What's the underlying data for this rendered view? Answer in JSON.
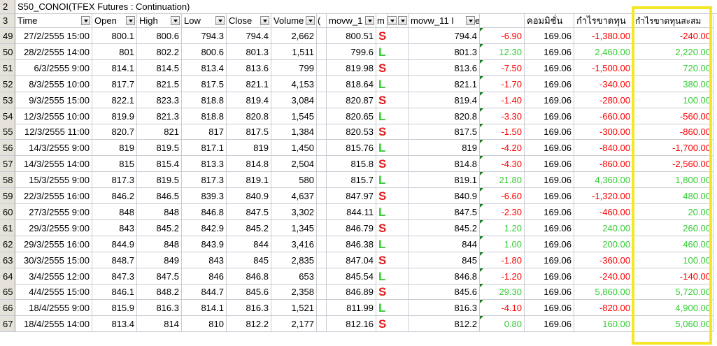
{
  "row2": {
    "num": "2",
    "title": "S50_CONOI(TFEX Futures : Continuation)"
  },
  "header": {
    "num": "3",
    "cols": [
      "Time",
      "Open",
      "High",
      "Low",
      "Close",
      "Volume",
      "(",
      "movw_1",
      "m",
      "",
      "movw_11 I",
      "e",
      "",
      "คอมมิชั่น",
      "กำไรขาดทุน",
      "กำไรขาดทุนสะสม"
    ]
  },
  "colors": {
    "positive": "#33cc33",
    "negative": "#ff0000",
    "highlight": "#f5e626",
    "rowheader": "#e4e2da"
  },
  "rows": [
    {
      "n": "49",
      "time": "27/2/2555 15:00",
      "open": "800.1",
      "high": "800.6",
      "low": "794.3",
      "close": "794.4",
      "vol": "2,662",
      "m1": "800.51",
      "sig": "S",
      "m11": "794.4",
      "pnl": "-6.90",
      "comm": "169.06",
      "pl": "-1,380.00",
      "cum": "-240.00"
    },
    {
      "n": "50",
      "time": "28/2/2555 14:00",
      "open": "801",
      "high": "802.2",
      "low": "800.6",
      "close": "801.3",
      "vol": "1,511",
      "m1": "799.6",
      "sig": "L",
      "m11": "801.3",
      "pnl": "12.30",
      "comm": "169.06",
      "pl": "2,460.00",
      "cum": "2,220.00"
    },
    {
      "n": "51",
      "time": "6/3/2555 9:00",
      "open": "814.1",
      "high": "814.5",
      "low": "813.4",
      "close": "813.6",
      "vol": "799",
      "m1": "819.98",
      "sig": "S",
      "m11": "813.6",
      "pnl": "-7.50",
      "comm": "169.06",
      "pl": "-1,500.00",
      "cum": "720.00"
    },
    {
      "n": "52",
      "time": "8/3/2555 10:00",
      "open": "817.7",
      "high": "821.5",
      "low": "817.5",
      "close": "821.1",
      "vol": "4,153",
      "m1": "818.64",
      "sig": "L",
      "m11": "821.1",
      "pnl": "-1.70",
      "comm": "169.06",
      "pl": "-340.00",
      "cum": "380.00"
    },
    {
      "n": "53",
      "time": "9/3/2555 15:00",
      "open": "822.1",
      "high": "823.3",
      "low": "818.8",
      "close": "819.4",
      "vol": "3,084",
      "m1": "820.87",
      "sig": "S",
      "m11": "819.4",
      "pnl": "-1.40",
      "comm": "169.06",
      "pl": "-280.00",
      "cum": "100.00"
    },
    {
      "n": "54",
      "time": "12/3/2555 10:00",
      "open": "819.9",
      "high": "821.3",
      "low": "818.8",
      "close": "820.8",
      "vol": "1,545",
      "m1": "820.65",
      "sig": "L",
      "m11": "820.8",
      "pnl": "-3.30",
      "comm": "169.06",
      "pl": "-660.00",
      "cum": "-560.00"
    },
    {
      "n": "55",
      "time": "12/3/2555 11:00",
      "open": "820.7",
      "high": "821",
      "low": "817",
      "close": "817.5",
      "vol": "1,384",
      "m1": "820.53",
      "sig": "S",
      "m11": "817.5",
      "pnl": "-1.50",
      "comm": "169.06",
      "pl": "-300.00",
      "cum": "-860.00"
    },
    {
      "n": "56",
      "time": "14/3/2555 9:00",
      "open": "819",
      "high": "819.5",
      "low": "817.1",
      "close": "819",
      "vol": "1,450",
      "m1": "815.76",
      "sig": "L",
      "m11": "819",
      "pnl": "-4.20",
      "comm": "169.06",
      "pl": "-840.00",
      "cum": "-1,700.00"
    },
    {
      "n": "57",
      "time": "14/3/2555 14:00",
      "open": "815",
      "high": "815.4",
      "low": "813.3",
      "close": "814.8",
      "vol": "2,504",
      "m1": "815.8",
      "sig": "S",
      "m11": "814.8",
      "pnl": "-4.30",
      "comm": "169.06",
      "pl": "-860.00",
      "cum": "-2,560.00"
    },
    {
      "n": "58",
      "time": "15/3/2555 9:00",
      "open": "817.3",
      "high": "819.5",
      "low": "817.3",
      "close": "819.1",
      "vol": "580",
      "m1": "815.7",
      "sig": "L",
      "m11": "819.1",
      "pnl": "21.80",
      "comm": "169.06",
      "pl": "4,360.00",
      "cum": "1,800.00"
    },
    {
      "n": "59",
      "time": "22/3/2555 16:00",
      "open": "846.2",
      "high": "846.5",
      "low": "839.3",
      "close": "840.9",
      "vol": "4,637",
      "m1": "847.97",
      "sig": "S",
      "m11": "840.9",
      "pnl": "-6.60",
      "comm": "169.06",
      "pl": "-1,320.00",
      "cum": "480.00"
    },
    {
      "n": "60",
      "time": "27/3/2555 9:00",
      "open": "848",
      "high": "848",
      "low": "846.8",
      "close": "847.5",
      "vol": "3,302",
      "m1": "844.11",
      "sig": "L",
      "m11": "847.5",
      "pnl": "-2.30",
      "comm": "169.06",
      "pl": "-460.00",
      "cum": "20.00"
    },
    {
      "n": "61",
      "time": "29/3/2555 9:00",
      "open": "843",
      "high": "845.2",
      "low": "842.9",
      "close": "845.2",
      "vol": "1,345",
      "m1": "846.79",
      "sig": "S",
      "m11": "845.2",
      "pnl": "1.20",
      "comm": "169.06",
      "pl": "240.00",
      "cum": "260.00"
    },
    {
      "n": "62",
      "time": "29/3/2555 16:00",
      "open": "844.9",
      "high": "848",
      "low": "843.9",
      "close": "844",
      "vol": "3,416",
      "m1": "846.38",
      "sig": "L",
      "m11": "844",
      "pnl": "1.00",
      "comm": "169.06",
      "pl": "200.00",
      "cum": "460.00"
    },
    {
      "n": "63",
      "time": "30/3/2555 15:00",
      "open": "848.7",
      "high": "849",
      "low": "843",
      "close": "845",
      "vol": "2,835",
      "m1": "847.04",
      "sig": "S",
      "m11": "845",
      "pnl": "-1.80",
      "comm": "169.06",
      "pl": "-360.00",
      "cum": "100.00"
    },
    {
      "n": "64",
      "time": "3/4/2555 12:00",
      "open": "847.3",
      "high": "847.5",
      "low": "846",
      "close": "846.8",
      "vol": "653",
      "m1": "845.54",
      "sig": "L",
      "m11": "846.8",
      "pnl": "-1.20",
      "comm": "169.06",
      "pl": "-240.00",
      "cum": "-140.00"
    },
    {
      "n": "65",
      "time": "4/4/2555 15:00",
      "open": "846.1",
      "high": "848.2",
      "low": "844.7",
      "close": "845.6",
      "vol": "2,358",
      "m1": "846.89",
      "sig": "S",
      "m11": "845.6",
      "pnl": "29.30",
      "comm": "169.06",
      "pl": "5,860.00",
      "cum": "5,720.00"
    },
    {
      "n": "66",
      "time": "18/4/2555 9:00",
      "open": "815.9",
      "high": "816.3",
      "low": "814.1",
      "close": "816.3",
      "vol": "1,521",
      "m1": "811.99",
      "sig": "L",
      "m11": "816.3",
      "pnl": "-4.10",
      "comm": "169.06",
      "pl": "-820.00",
      "cum": "4,900.00"
    },
    {
      "n": "67",
      "time": "18/4/2555 14:00",
      "open": "813.4",
      "high": "814",
      "low": "810",
      "close": "812.2",
      "vol": "2,177",
      "m1": "812.16",
      "sig": "S",
      "m11": "812.2",
      "pnl": "0.80",
      "comm": "169.06",
      "pl": "160.00",
      "cum": "5,060.00"
    }
  ]
}
